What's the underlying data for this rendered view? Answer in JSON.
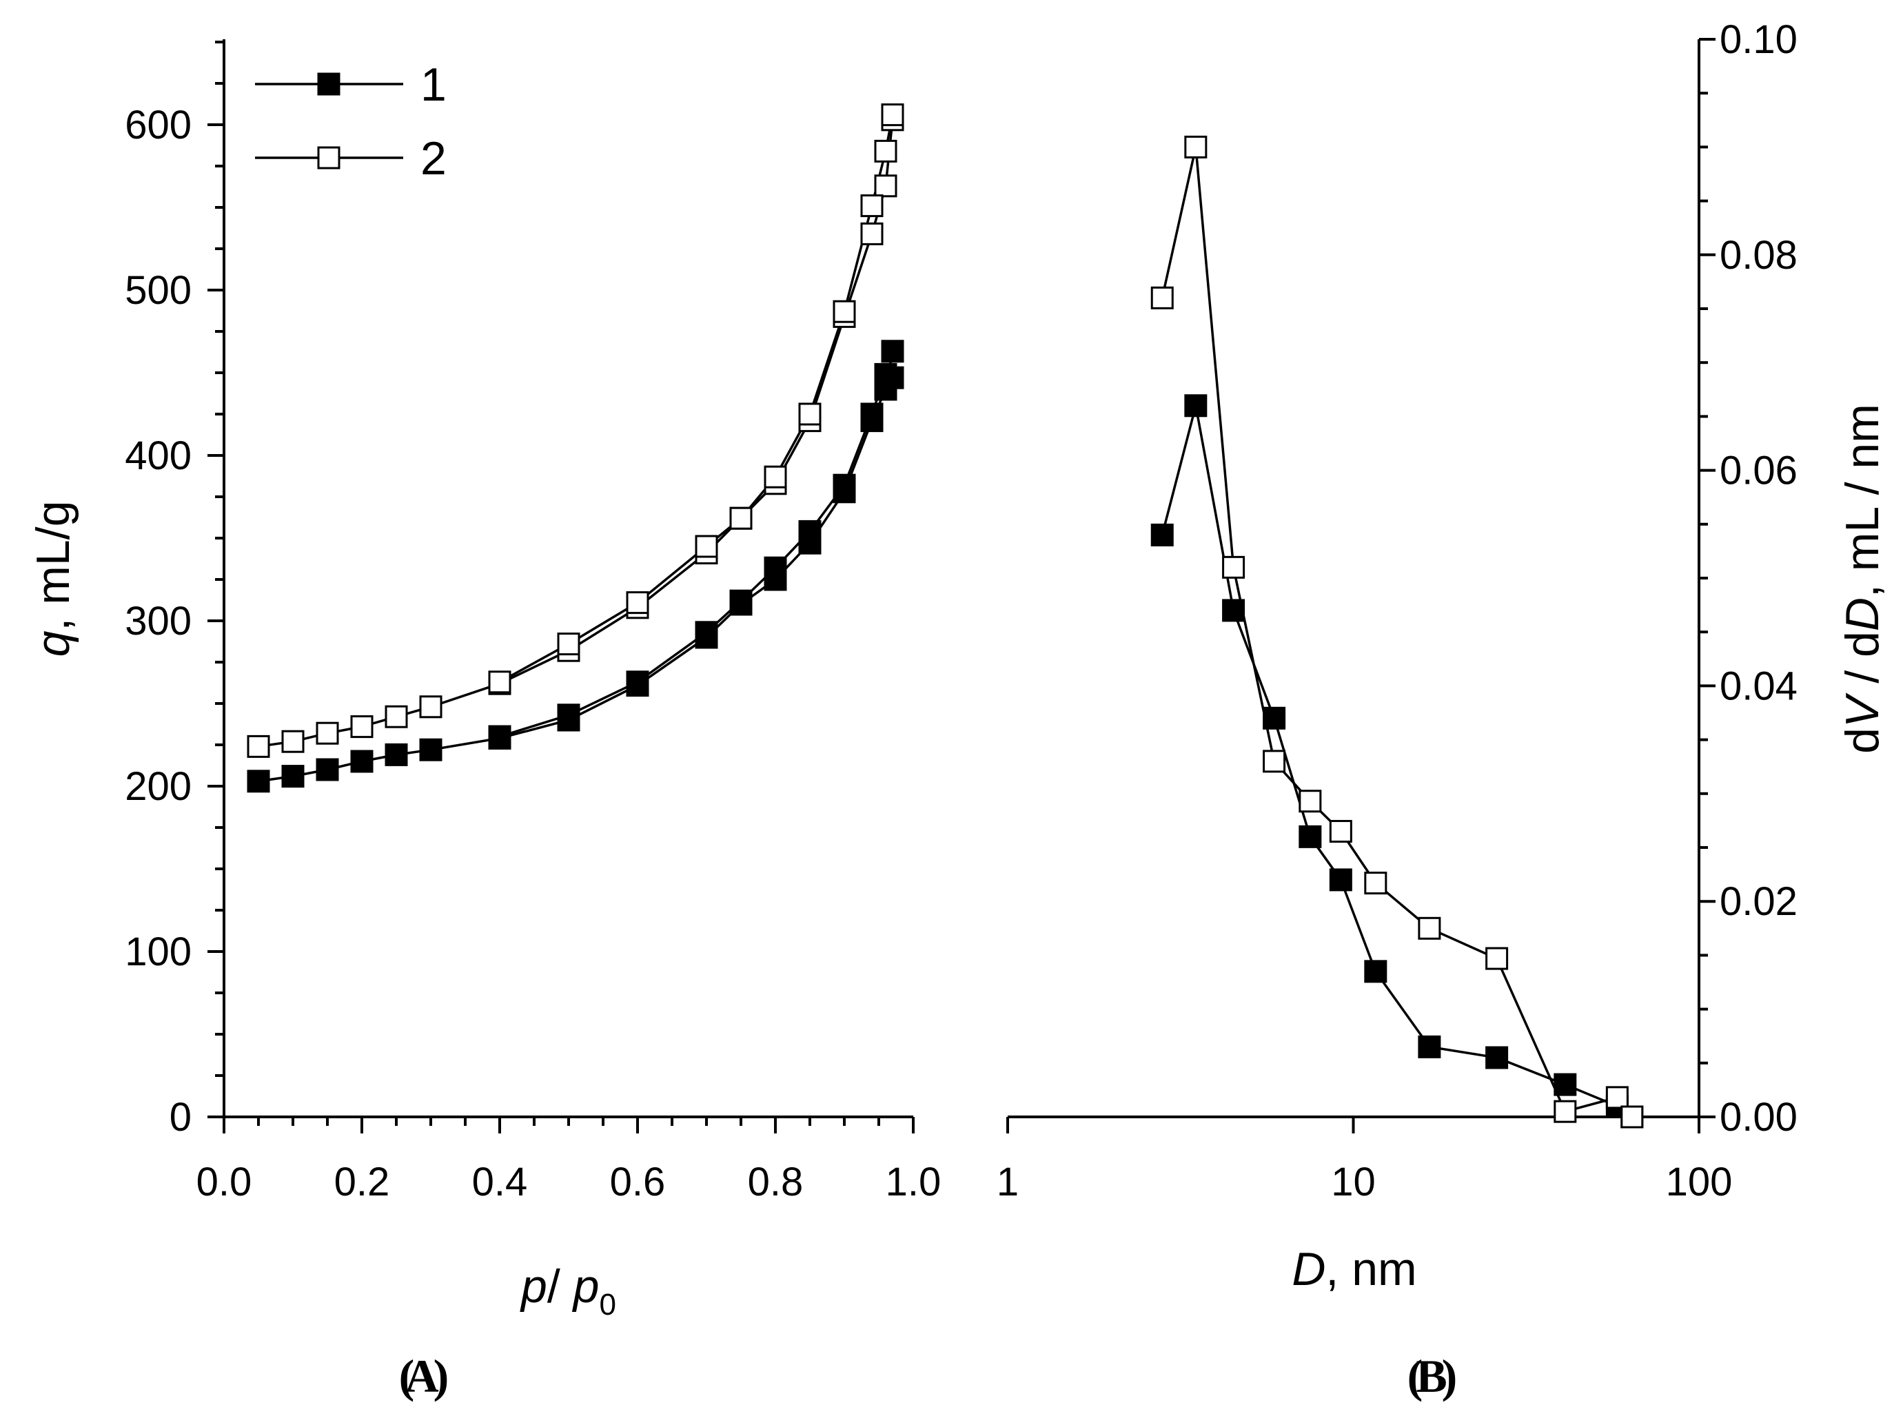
{
  "chart_data": [
    {
      "type": "line",
      "panel_label": "A",
      "xlabel": {
        "italic": "p",
        "sep": "/ ",
        "italic2": "p",
        "sub": "0"
      },
      "ylabel": {
        "italic": "q",
        "rest": ", mL/g"
      },
      "xlim": [
        0.0,
        1.0
      ],
      "ylim": [
        0,
        650
      ],
      "x_ticks": [
        "0.0",
        "0.2",
        "0.4",
        "0.6",
        "0.8",
        "1.0"
      ],
      "y_ticks": [
        "0",
        "100",
        "200",
        "300",
        "400",
        "500",
        "600"
      ],
      "legend": {
        "position": "top-left",
        "entries": [
          {
            "label": "1",
            "marker": "filled-square"
          },
          {
            "label": "2",
            "marker": "open-square"
          }
        ]
      },
      "series": [
        {
          "name": "1",
          "marker": "filled",
          "adsorption": {
            "x": [
              0.05,
              0.1,
              0.15,
              0.2,
              0.25,
              0.3,
              0.4,
              0.5,
              0.6,
              0.7,
              0.75,
              0.8,
              0.85,
              0.9,
              0.94,
              0.96,
              0.97
            ],
            "y": [
              203,
              206,
              210,
              215,
              219,
              222,
              229,
              240,
              261,
              290,
              310,
              325,
              347,
              378,
              421,
              440,
              463
            ]
          },
          "desorption": {
            "x": [
              0.97,
              0.96,
              0.94,
              0.9,
              0.85,
              0.8,
              0.75,
              0.7,
              0.6,
              0.5,
              0.4
            ],
            "y": [
              447,
              449,
              425,
              382,
              354,
              332,
              312,
              293,
              263,
              243,
              230
            ]
          }
        },
        {
          "name": "2",
          "marker": "open",
          "adsorption": {
            "x": [
              0.05,
              0.1,
              0.15,
              0.2,
              0.25,
              0.3,
              0.4,
              0.5,
              0.6,
              0.7,
              0.75,
              0.8,
              0.85,
              0.9,
              0.94,
              0.96,
              0.97
            ],
            "y": [
              224,
              227,
              232,
              236,
              242,
              248,
              262,
              282,
              308,
              341,
              362,
              383,
              421,
              484,
              534,
              563,
              603
            ]
          },
          "desorption": {
            "x": [
              0.97,
              0.96,
              0.94,
              0.9,
              0.85,
              0.8,
              0.75,
              0.7,
              0.6,
              0.5,
              0.4
            ],
            "y": [
              606,
              584,
              551,
              487,
              425,
              387,
              362,
              345,
              311,
              286,
              263
            ]
          }
        }
      ]
    },
    {
      "type": "line",
      "panel_label": "B",
      "x_scale": "log",
      "xlabel": {
        "italic": "D",
        "rest": ", nm"
      },
      "ylabel": {
        "p1": "d",
        "i1": "V",
        "p2": " / d",
        "i2": "D",
        "p3": ", mL / nm"
      },
      "xlim": [
        1,
        100
      ],
      "ylim": [
        0.0,
        0.1
      ],
      "x_ticks": [
        "1",
        "10",
        "100"
      ],
      "y_ticks": [
        "0.00",
        "0.02",
        "0.04",
        "0.06",
        "0.08",
        "0.10"
      ],
      "series": [
        {
          "name": "1",
          "marker": "filled",
          "x": [
            2.8,
            3.5,
            4.5,
            5.9,
            7.5,
            9.2,
            11.6,
            16.6,
            26.0,
            41.0,
            58.0,
            64.0
          ],
          "y": [
            0.054,
            0.066,
            0.047,
            0.037,
            0.026,
            0.022,
            0.0135,
            0.0065,
            0.0055,
            0.003,
            0.001,
            0.0
          ]
        },
        {
          "name": "2",
          "marker": "open",
          "x": [
            2.8,
            3.5,
            4.5,
            5.9,
            7.5,
            9.2,
            11.6,
            16.6,
            26.0,
            41.0,
            58.0,
            64.0
          ],
          "y": [
            0.076,
            0.09,
            0.051,
            0.033,
            0.0293,
            0.0265,
            0.0217,
            0.0175,
            0.0147,
            0.0005,
            0.0018,
            0.0
          ]
        }
      ]
    }
  ]
}
